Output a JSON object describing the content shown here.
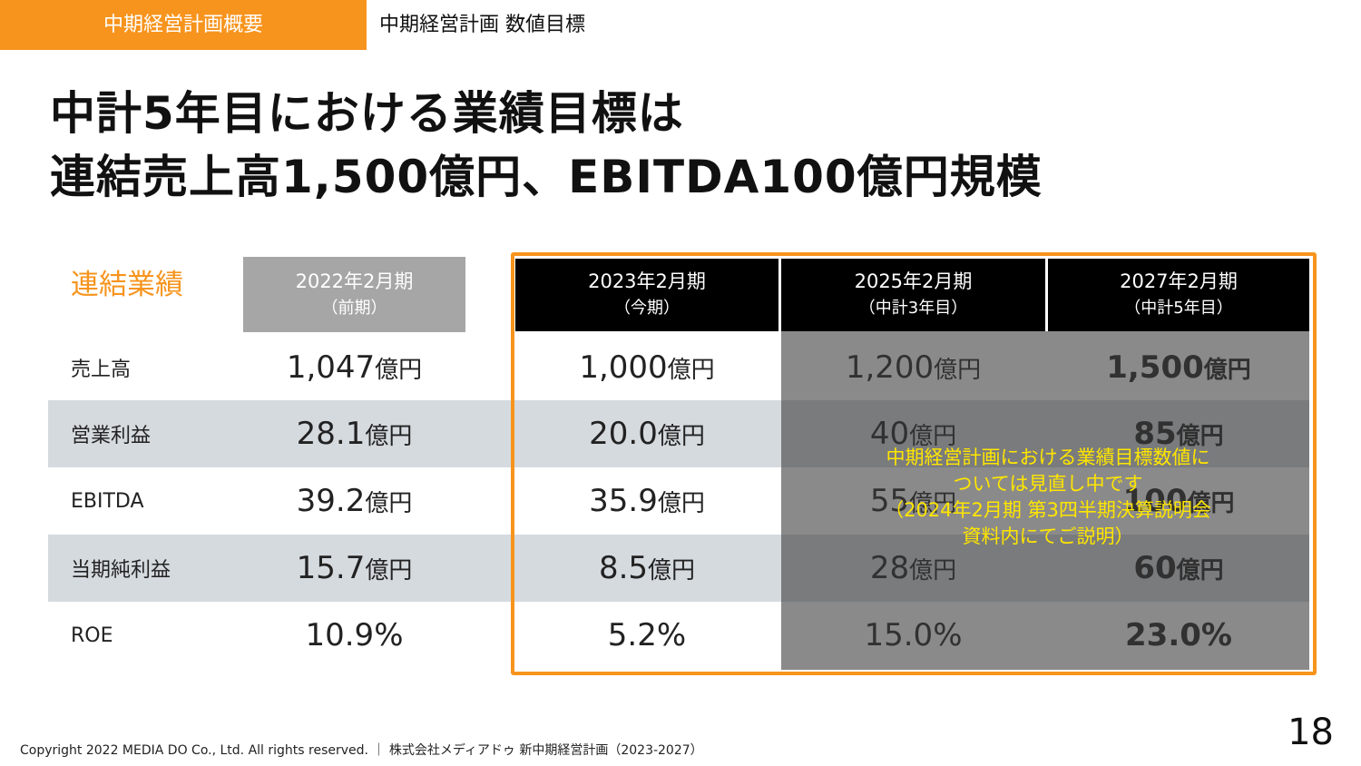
{
  "header": {
    "tab": "中期経営計画概要",
    "breadcrumb": "中期経営計画 数値目標"
  },
  "title": [
    "中計5年目における業績目標は",
    "連結売上高1,500億円、EBITDA100億円規模"
  ],
  "table": {
    "label": "連結業績",
    "columns": [
      {
        "period": "2022年2月期",
        "note": "（前期）"
      },
      {
        "period": "2023年2月期",
        "note": "（今期）"
      },
      {
        "period": "2025年2月期",
        "note": "（中計3年目）"
      },
      {
        "period": "2027年2月期",
        "note": "（中計5年目）"
      }
    ],
    "rows": [
      {
        "label": "売上高",
        "cells": [
          {
            "value": "1,047",
            "unit": "億円"
          },
          {
            "value": "1,000",
            "unit": "億円"
          },
          {
            "value": "1,200",
            "unit": "億円"
          },
          {
            "value": "1,500",
            "unit": "億円"
          }
        ]
      },
      {
        "label": "営業利益",
        "cells": [
          {
            "value": "28.1",
            "unit": "億円"
          },
          {
            "value": "20.0",
            "unit": "億円"
          },
          {
            "value": "40",
            "unit": "億円"
          },
          {
            "value": "85",
            "unit": "億円"
          }
        ]
      },
      {
        "label": "EBITDA",
        "cells": [
          {
            "value": "39.2",
            "unit": "億円"
          },
          {
            "value": "35.9",
            "unit": "億円"
          },
          {
            "value": "55",
            "unit": "億円"
          },
          {
            "value": "100",
            "unit": "億円"
          }
        ]
      },
      {
        "label": "当期純利益",
        "cells": [
          {
            "value": "15.7",
            "unit": "億円"
          },
          {
            "value": "8.5",
            "unit": "億円"
          },
          {
            "value": "28",
            "unit": "億円"
          },
          {
            "value": "60",
            "unit": "億円"
          }
        ]
      },
      {
        "label": "ROE",
        "cells": [
          {
            "value": "10.9%"
          },
          {
            "value": "5.2%"
          },
          {
            "value": "15.0%"
          },
          {
            "value": "23.0%"
          }
        ]
      }
    ]
  },
  "note": [
    "中期経営計画における業績目標数値に",
    "ついては見直し中です",
    "（2024年2月期 第3四半期決算説明会",
    "資料内にてご説明）"
  ],
  "footer": {
    "copyright": "Copyright 2022 MEDIA DO Co., Ltd. All rights reserved. ｜ 株式会社メディアドゥ 新中期経営計画（2023-2027）",
    "page": "18"
  }
}
